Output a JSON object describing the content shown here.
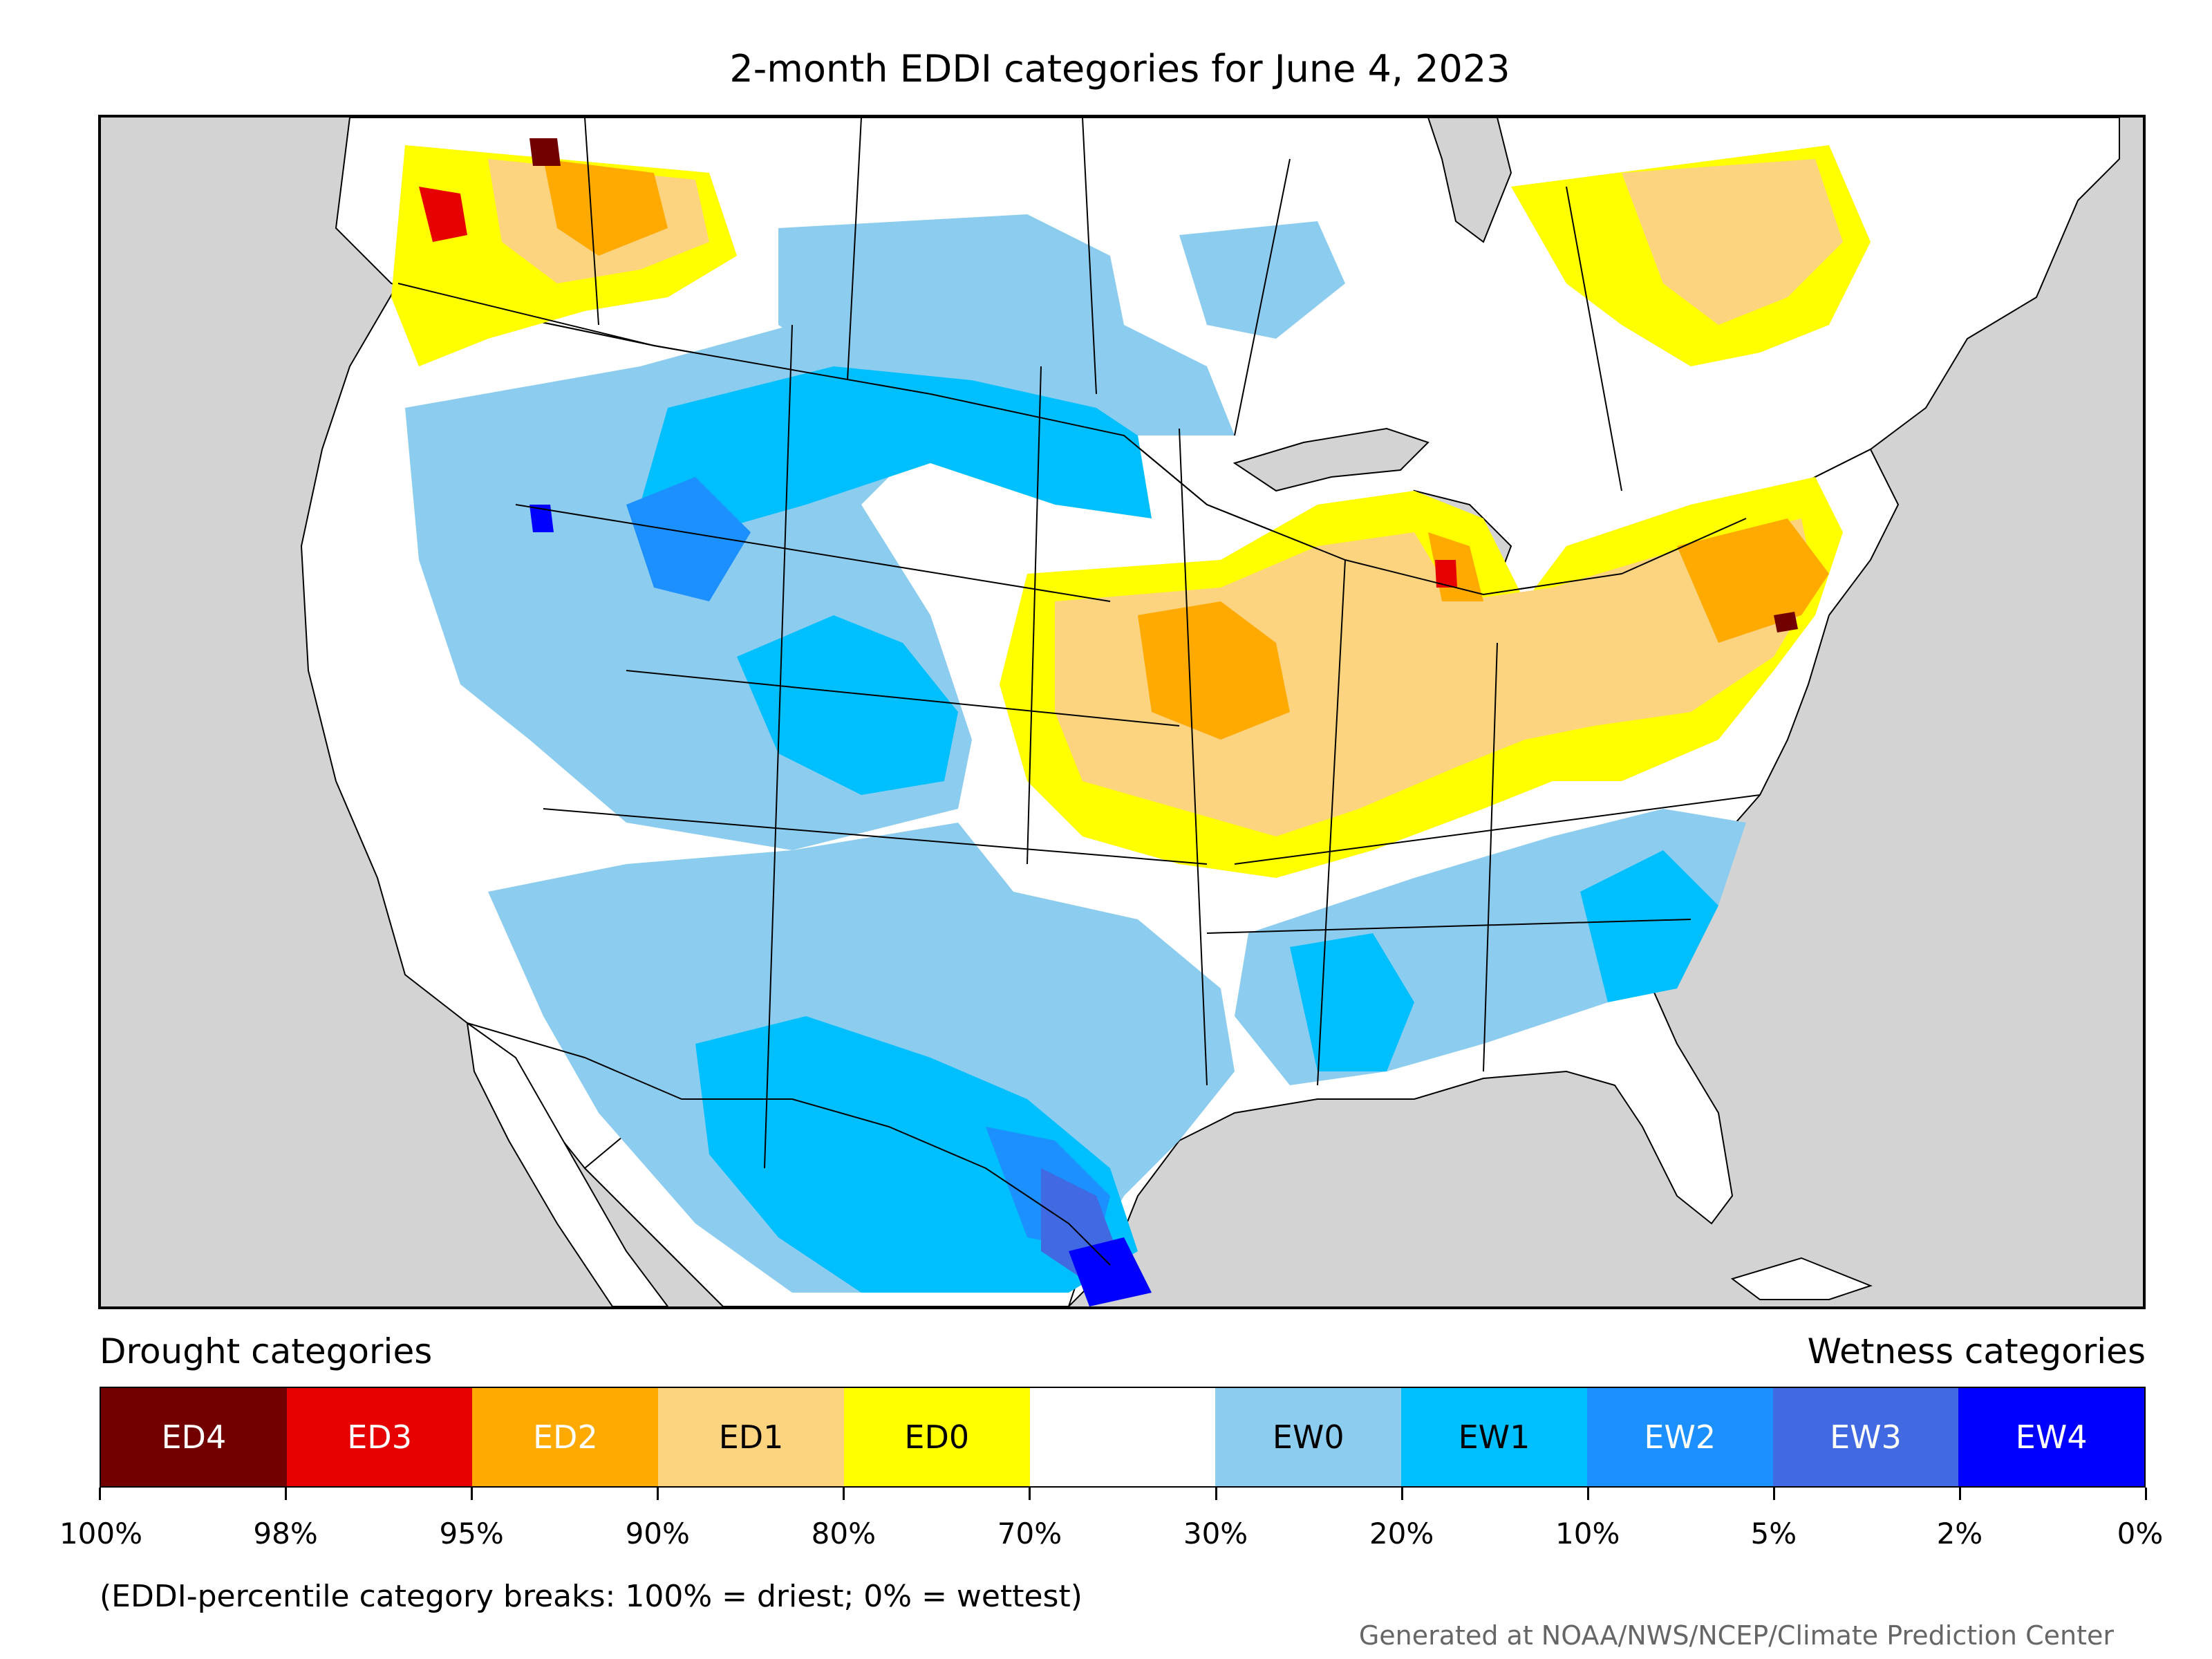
{
  "title": "2-month EDDI categories for June 4, 2023",
  "legend": {
    "drought_heading": "Drought categories",
    "wetness_heading": "Wetness categories",
    "categories": [
      {
        "label": "ED4",
        "color": "#730000"
      },
      {
        "label": "ED3",
        "color": "#e60000"
      },
      {
        "label": "ED2",
        "color": "#ffaa00"
      },
      {
        "label": "ED1",
        "color": "#fcd37f"
      },
      {
        "label": "ED0",
        "color": "#ffff00"
      },
      {
        "label": "",
        "color": "#ffffff"
      },
      {
        "label": "EW0",
        "color": "#8ccdef"
      },
      {
        "label": "EW1",
        "color": "#00bfff"
      },
      {
        "label": "EW2",
        "color": "#1d90ff"
      },
      {
        "label": "EW3",
        "color": "#4169e1"
      },
      {
        "label": "EW4",
        "color": "#0000ff"
      }
    ],
    "breaks": [
      "100%",
      "98%",
      "95%",
      "90%",
      "80%",
      "70%",
      "30%",
      "20%",
      "10%",
      "5%",
      "2%",
      "0%"
    ]
  },
  "note": "(EDDI-percentile category breaks: 100% = driest; 0% = wettest)",
  "credit": "Generated at NOAA/NWS/NCEP/Climate Prediction Center",
  "map": {
    "ocean_color": "#d3d3d3",
    "land_color": "#ffffff",
    "border_color": "#000000"
  }
}
